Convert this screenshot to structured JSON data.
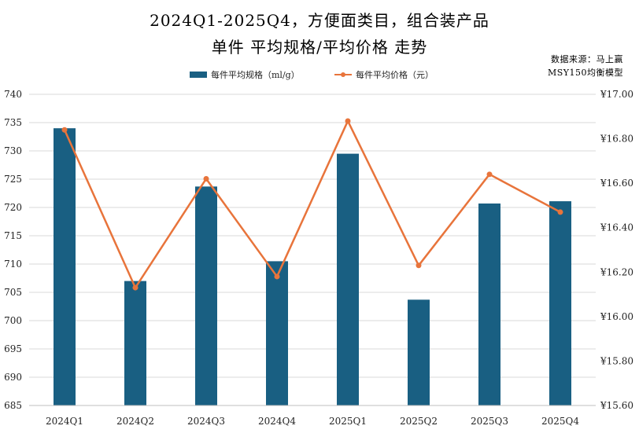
{
  "header": {
    "title_line1": "2024Q1-2025Q4，方便面类目，组合装产品",
    "title_line2": "单件 平均规格/平均价格 走势",
    "source_line1": "数据来源：马上赢",
    "source_line2": "MSY150均衡模型"
  },
  "chart_data": {
    "type": "bar+line",
    "categories": [
      "2024Q1",
      "2024Q2",
      "2024Q3",
      "2024Q4",
      "2025Q1",
      "2025Q2",
      "2025Q3",
      "2025Q4"
    ],
    "series": [
      {
        "name": "每件平均规格（ml/g）",
        "type": "bar",
        "axis": "left",
        "color": "#195f82",
        "values": [
          734,
          707,
          723.7,
          710.5,
          729.5,
          703.7,
          720.7,
          721.1
        ]
      },
      {
        "name": "每件平均价格（元）",
        "type": "line",
        "axis": "right",
        "color": "#e8743b",
        "values": [
          16.84,
          16.13,
          16.62,
          16.18,
          16.88,
          16.23,
          16.64,
          16.47
        ]
      }
    ],
    "y_left": {
      "min": 685,
      "max": 740,
      "step": 5,
      "tick_labels": [
        "685",
        "690",
        "695",
        "700",
        "705",
        "710",
        "715",
        "720",
        "725",
        "730",
        "735",
        "740"
      ]
    },
    "y_right": {
      "min": 15.6,
      "max": 17.0,
      "step": 0.2,
      "tick_labels": [
        "¥15.60",
        "¥15.80",
        "¥16.00",
        "¥16.20",
        "¥16.40",
        "¥16.60",
        "¥16.80",
        "¥17.00"
      ]
    },
    "grid": true,
    "legend_position": "top-center"
  }
}
